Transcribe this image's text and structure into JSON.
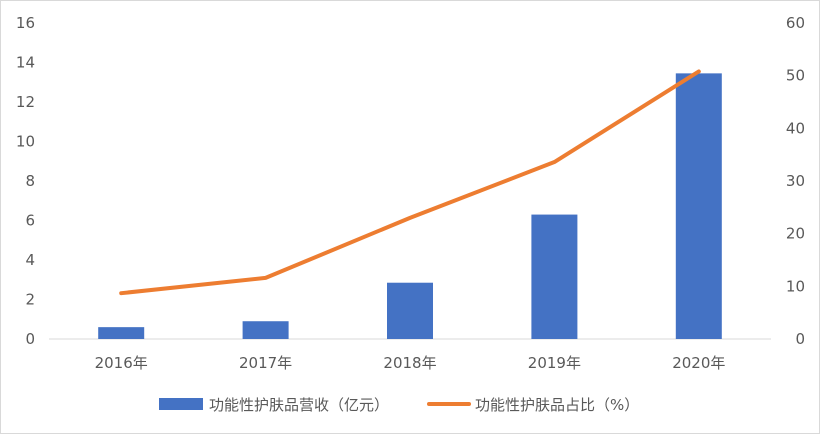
{
  "chart_data": {
    "type": "bar+line",
    "categories": [
      "2016年",
      "2017年",
      "2018年",
      "2019年",
      "2020年"
    ],
    "series": [
      {
        "name": "功能性护肤品营收（亿元）",
        "type": "bar",
        "axis": "left",
        "color": "#4472c4",
        "values": [
          0.6,
          0.9,
          2.85,
          6.3,
          13.45
        ]
      },
      {
        "name": "功能性护肤品占比（%）",
        "type": "line",
        "axis": "right",
        "color": "#ed7d31",
        "values": [
          8.7,
          11.6,
          23.0,
          33.6,
          50.8
        ]
      }
    ],
    "y_left": {
      "min": 0,
      "max": 16,
      "step": 2,
      "ticks": [
        "0",
        "2",
        "4",
        "6",
        "8",
        "10",
        "12",
        "14",
        "16"
      ]
    },
    "y_right": {
      "min": 0,
      "max": 60,
      "step": 10,
      "ticks": [
        "0",
        "10",
        "20",
        "30",
        "40",
        "50",
        "60"
      ]
    },
    "grid": false,
    "legend_position": "bottom",
    "title": "",
    "xlabel": "",
    "ylabel": ""
  }
}
